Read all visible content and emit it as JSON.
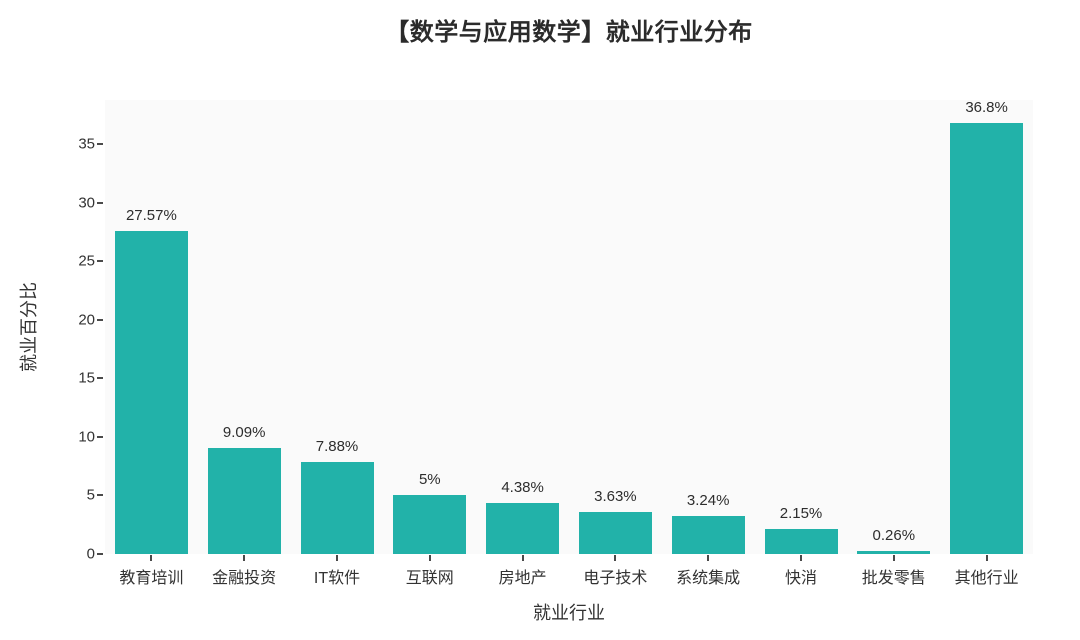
{
  "title": "【数学与应用数学】就业行业分布",
  "chart_data": {
    "type": "bar",
    "title": "【数学与应用数学】就业行业分布",
    "categories": [
      "教育培训",
      "金融投资",
      "IT软件",
      "互联网",
      "房地产",
      "电子技术",
      "系统集成",
      "快消",
      "批发零售",
      "其他行业"
    ],
    "values": [
      27.57,
      9.09,
      7.88,
      5,
      4.38,
      3.63,
      3.24,
      2.15,
      0.26,
      36.8
    ],
    "value_labels": [
      "27.57%",
      "9.09%",
      "7.88%",
      "5%",
      "4.38%",
      "3.63%",
      "3.24%",
      "2.15%",
      "0.26%",
      "36.8%"
    ],
    "xlabel": "就业行业",
    "ylabel": "就业百分比",
    "ylim": [
      0,
      38.8
    ],
    "yticks": [
      0,
      5,
      10,
      15,
      20,
      25,
      30,
      35
    ],
    "grid": false,
    "legend": "none",
    "bar_color": "#22b2a9",
    "plot_bg_color": "#fafafa",
    "text_color": "#333333"
  }
}
